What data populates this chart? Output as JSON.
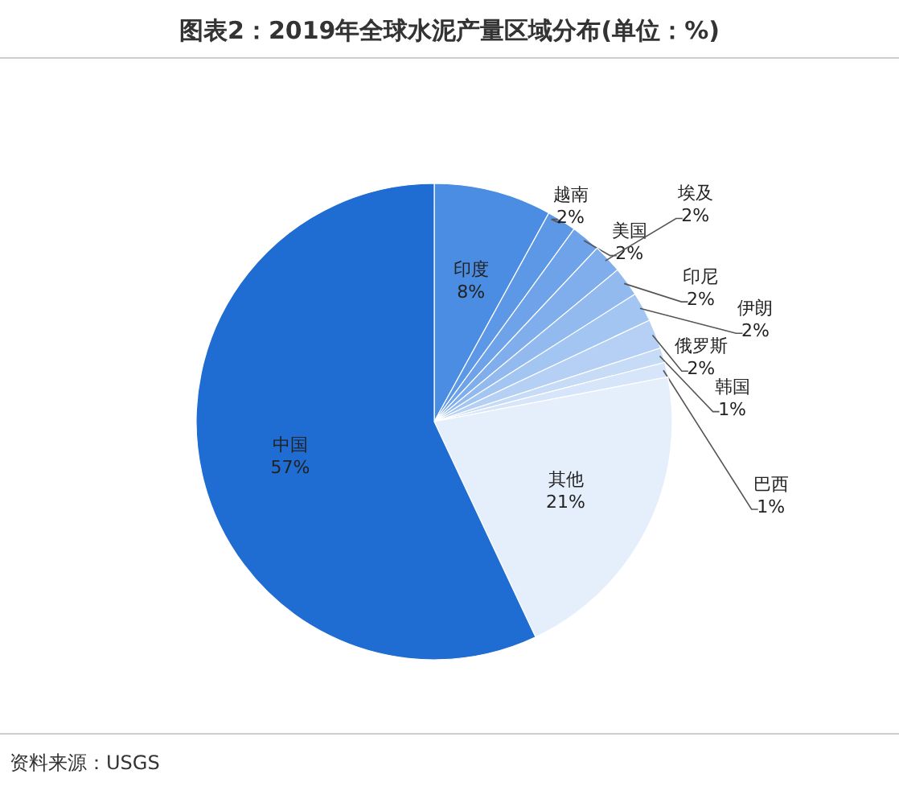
{
  "chart_data": {
    "type": "pie",
    "title": "图表2：2019年全球水泥产量区域分布(单位：%)",
    "categories": [
      "印度",
      "越南",
      "美国",
      "埃及",
      "印尼",
      "伊朗",
      "俄罗斯",
      "韩国",
      "巴西",
      "其他",
      "中国"
    ],
    "values": [
      8,
      2,
      2,
      2,
      2,
      2,
      2,
      1,
      1,
      21,
      57
    ],
    "value_labels": [
      "8%",
      "2%",
      "2%",
      "2%",
      "2%",
      "2%",
      "2%",
      "1%",
      "1%",
      "21%",
      "57%"
    ],
    "colors": [
      "#4b8de3",
      "#5d98e6",
      "#6fa3e9",
      "#80aeec",
      "#92baef",
      "#a3c5f1",
      "#b5d0f4",
      "#c6dbf6",
      "#d6e5f9",
      "#e5effb",
      "#1f6dd2"
    ],
    "annotations": [
      "资料来源：USGS"
    ]
  }
}
